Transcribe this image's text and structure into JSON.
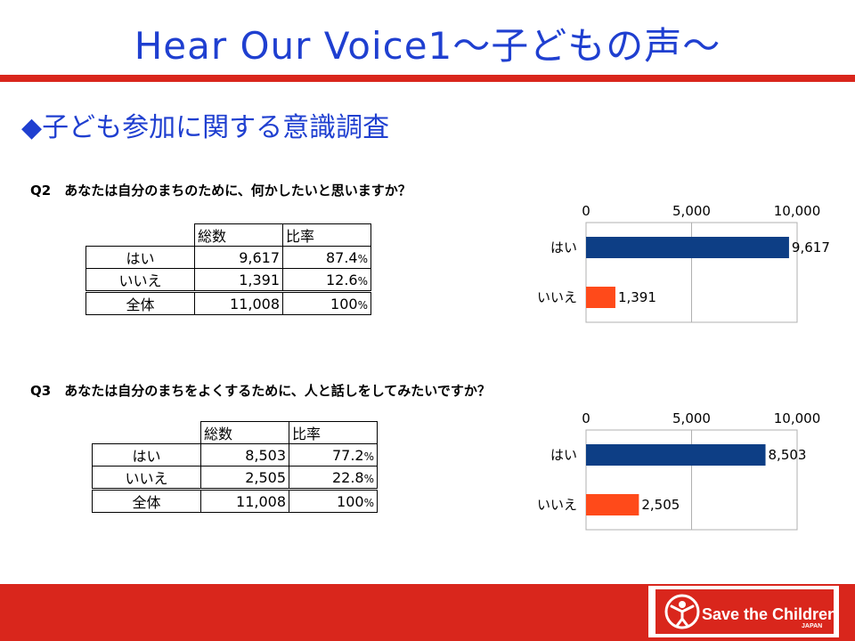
{
  "title": "Hear Our Voice1～子どもの声～",
  "section_heading": "◆子ども参加に関する意識調査",
  "colors": {
    "title": "#1f3fd0",
    "accent_red": "#d9261c",
    "bar_yes": "#0d3e85",
    "bar_no": "#ff4a1a"
  },
  "questions": [
    {
      "label": "Q2　あなたは自分のまちのために、何かしたいと思いますか？",
      "table": {
        "headers": [
          "総数",
          "比率"
        ],
        "rows": [
          {
            "label": "はい",
            "count": "9,617",
            "ratio": "87.4",
            "pct": "%"
          },
          {
            "label": "いいえ",
            "count": "1,391",
            "ratio": "12.6",
            "pct": "%"
          },
          {
            "label": "全体",
            "count": "11,008",
            "ratio": "100",
            "pct": "%"
          }
        ]
      }
    },
    {
      "label": "Q3　あなたは自分のまちをよくするために、人と話しをしてみたいですか？",
      "table": {
        "headers": [
          "総数",
          "比率"
        ],
        "rows": [
          {
            "label": "はい",
            "count": "8,503",
            "ratio": "77.2",
            "pct": "%"
          },
          {
            "label": "いいえ",
            "count": "2,505",
            "ratio": "22.8",
            "pct": "%"
          },
          {
            "label": "全体",
            "count": "11,008",
            "ratio": "100",
            "pct": "%"
          }
        ]
      }
    }
  ],
  "chart_data": [
    {
      "type": "bar",
      "orientation": "horizontal",
      "categories": [
        "はい",
        "いいえ"
      ],
      "values": [
        9617,
        1391
      ],
      "value_labels": [
        "9,617",
        "1,391"
      ],
      "xlim": [
        0,
        10000
      ],
      "ticks": [
        0,
        5000,
        10000
      ],
      "tick_labels": [
        "0",
        "5,000",
        "10,000"
      ],
      "axis_position": "top",
      "grid": true,
      "colors": [
        "#0d3e85",
        "#ff4a1a"
      ]
    },
    {
      "type": "bar",
      "orientation": "horizontal",
      "categories": [
        "はい",
        "いいえ"
      ],
      "values": [
        8503,
        2505
      ],
      "value_labels": [
        "8,503",
        "2,505"
      ],
      "xlim": [
        0,
        10000
      ],
      "ticks": [
        0,
        5000,
        10000
      ],
      "tick_labels": [
        "0",
        "5,000",
        "10,000"
      ],
      "axis_position": "top",
      "grid": true,
      "colors": [
        "#0d3e85",
        "#ff4a1a"
      ]
    }
  ],
  "logo": {
    "name": "Save the Children",
    "sub": "JAPAN"
  }
}
